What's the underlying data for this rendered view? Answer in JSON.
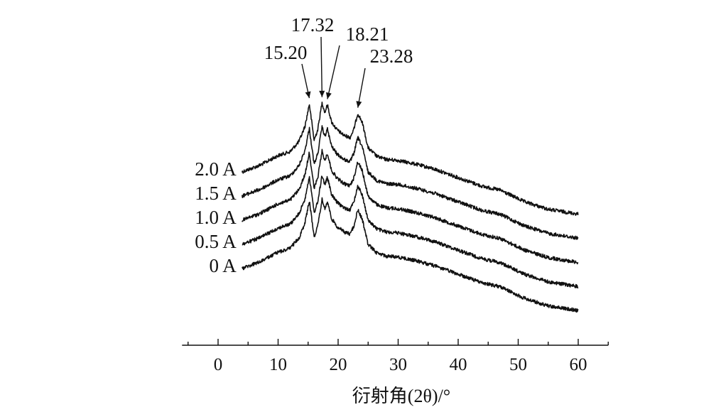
{
  "chart_data": {
    "type": "line",
    "title": "",
    "xlabel": "衍射角(2θ)/°",
    "ylabel": "",
    "xlim": [
      -6,
      65
    ],
    "x_ticks": [
      0,
      10,
      20,
      30,
      40,
      50,
      60
    ],
    "grid": false,
    "legend": "none",
    "y_axis_shown": false,
    "line_color": "#111111",
    "peaks": [
      {
        "label": "15.20",
        "x": 15.2
      },
      {
        "label": "17.32",
        "x": 17.32
      },
      {
        "label": "18.21",
        "x": 18.21
      },
      {
        "label": "23.28",
        "x": 23.28
      }
    ],
    "series": [
      {
        "name": "2.0 A",
        "label_x": 4,
        "offset": 4
      },
      {
        "name": "1.5 A",
        "label_x": 4,
        "offset": 3
      },
      {
        "name": "1.0 A",
        "label_x": 4,
        "offset": 2
      },
      {
        "name": "0.5 A",
        "label_x": 4,
        "offset": 1
      },
      {
        "name": "0 A",
        "label_x": 4,
        "offset": 0
      }
    ],
    "pattern_x": [
      4,
      7,
      10,
      12,
      13.5,
      14.5,
      15.2,
      16.0,
      16.6,
      17.32,
      17.8,
      18.21,
      18.9,
      19.8,
      21.0,
      22.0,
      22.6,
      23.28,
      24.0,
      25.0,
      26.5,
      28.0,
      30.0,
      33.0,
      36.0,
      40.0,
      44.0,
      47.0,
      48.0,
      51.0,
      55.0,
      60.0
    ],
    "pattern_y": [
      0,
      0.35,
      0.85,
      1.05,
      1.6,
      2.4,
      3.55,
      1.65,
      2.2,
      3.6,
      3.1,
      3.5,
      2.6,
      2.2,
      1.9,
      1.8,
      2.2,
      3.05,
      2.6,
      1.25,
      0.8,
      0.65,
      0.6,
      0.4,
      0.15,
      -0.3,
      -0.75,
      -0.95,
      -1.1,
      -1.55,
      -1.95,
      -2.2
    ]
  }
}
